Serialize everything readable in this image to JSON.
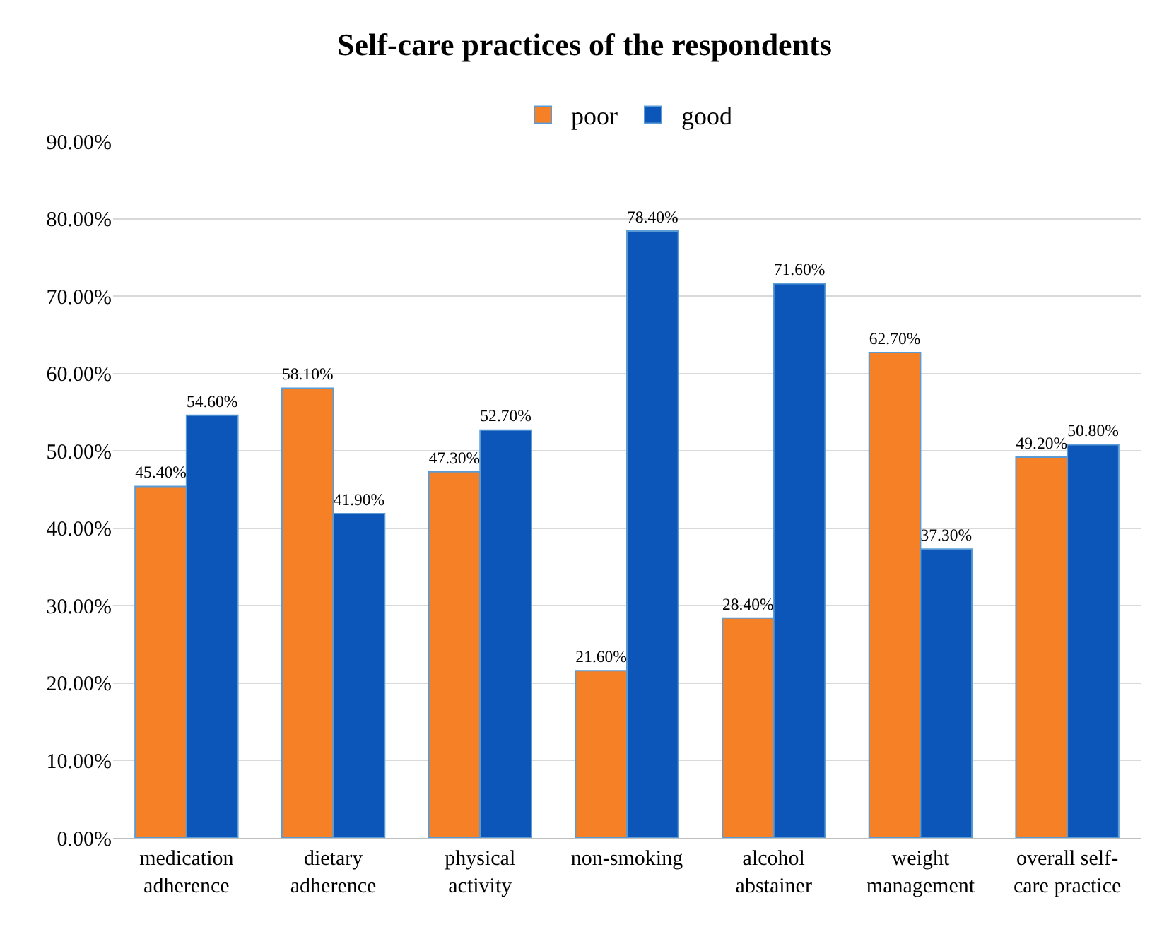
{
  "chart_data": {
    "type": "bar",
    "title": "Self-care practices of the respondents",
    "categories": [
      "medication adherence",
      "dietary adherence",
      "physical activity",
      "non-smoking",
      "alcohol abstainer",
      "weight management",
      "overall self-care practice"
    ],
    "series": [
      {
        "name": "poor",
        "color": "#f58026",
        "values": [
          45.4,
          58.1,
          47.3,
          21.6,
          28.4,
          62.7,
          49.2
        ],
        "value_labels": [
          "45.40%",
          "58.10%",
          "47.30%",
          "21.60%",
          "28.40%",
          "62.70%",
          "49.20%"
        ]
      },
      {
        "name": "good",
        "color": "#0b56b8",
        "values": [
          54.6,
          41.9,
          52.7,
          78.4,
          71.6,
          37.3,
          50.8
        ],
        "value_labels": [
          "54.60%",
          "41.90%",
          "52.70%",
          "78.40%",
          "71.60%",
          "37.30%",
          "50.80%"
        ]
      }
    ],
    "ylim": [
      0,
      90
    ],
    "yticks": [
      {
        "value": 0,
        "label": "0.00%"
      },
      {
        "value": 10,
        "label": "10.00%"
      },
      {
        "value": 20,
        "label": "20.00%"
      },
      {
        "value": 30,
        "label": "30.00%"
      },
      {
        "value": 40,
        "label": "40.00%"
      },
      {
        "value": 50,
        "label": "50.00%"
      },
      {
        "value": 60,
        "label": "60.00%"
      },
      {
        "value": 70,
        "label": "70.00%"
      },
      {
        "value": 80,
        "label": "80.00%"
      },
      {
        "value": 90,
        "label": "90.00%"
      }
    ],
    "grid": "y",
    "legend": "top"
  }
}
